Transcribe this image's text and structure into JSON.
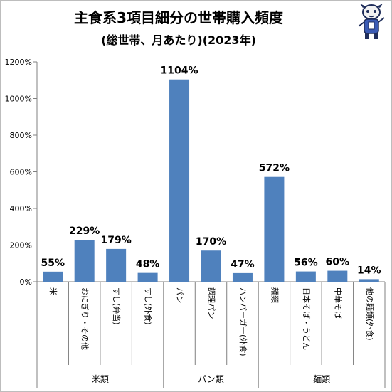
{
  "chart_data": {
    "type": "bar",
    "title": "主食系3項目細分の世帯購入頻度",
    "subtitle": "(総世帯、月あたり)(2023年)",
    "categories": [
      "米",
      "おにぎり・その他",
      "すし(弁当)",
      "すし(外食)",
      "パン",
      "調理パン",
      "ハンバーガー(外食)",
      "麺類",
      "日本そば・うどん",
      "中華そば",
      "他の麺類外食"
    ],
    "category_display": [
      "米",
      "おにぎり・その他",
      "すし(弁当)",
      "すし(外食)",
      "パン",
      "調理パン",
      "ハンバーガー(外食)",
      "麺類",
      "日本そば・うどん",
      "中華そば",
      "他の麺類(外食)"
    ],
    "values": [
      55,
      229,
      179,
      48,
      1104,
      170,
      47,
      572,
      56,
      60,
      14
    ],
    "value_labels": [
      "55%",
      "229%",
      "179%",
      "48%",
      "1104%",
      "170%",
      "47%",
      "572%",
      "56%",
      "60%",
      "14%"
    ],
    "groups": [
      {
        "name": "米類",
        "span": [
          0,
          3
        ]
      },
      {
        "name": "パン類",
        "span": [
          4,
          6
        ]
      },
      {
        "name": "麺類",
        "span": [
          7,
          10
        ]
      }
    ],
    "y_ticks": [
      "0%",
      "200%",
      "400%",
      "600%",
      "800%",
      "1000%",
      "1200%"
    ],
    "ylim": [
      0,
      1200
    ],
    "xlabel": "",
    "ylabel": "",
    "grid": false,
    "bar_color": "#4f81bd"
  }
}
